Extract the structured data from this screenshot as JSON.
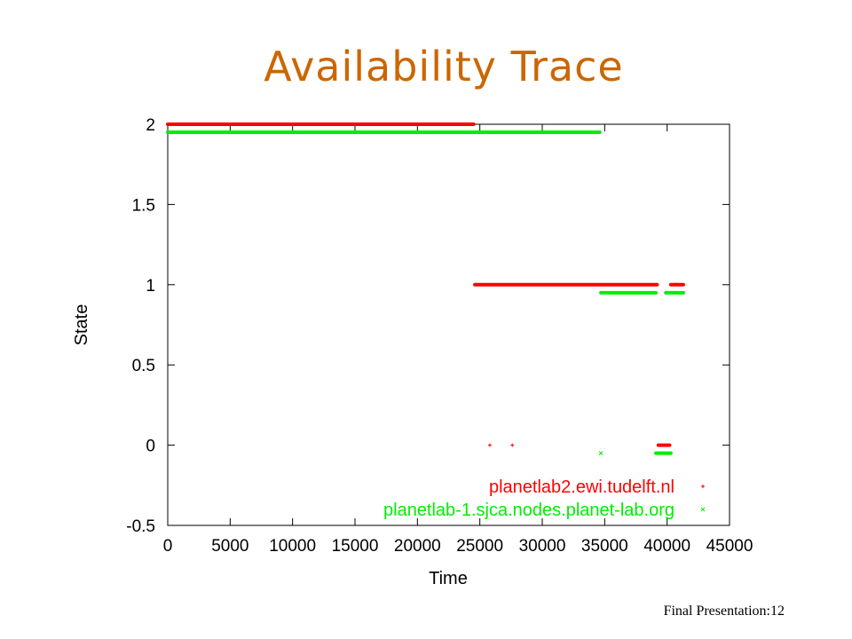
{
  "slide": {
    "title": "Availability Trace",
    "footer": "Final Presentation:12"
  },
  "chart_data": {
    "type": "scatter",
    "xlabel": "Time",
    "ylabel": "State",
    "xlim": [
      0,
      45000
    ],
    "ylim": [
      -0.5,
      2
    ],
    "xticks": [
      0,
      5000,
      10000,
      15000,
      20000,
      25000,
      30000,
      35000,
      40000,
      45000
    ],
    "xtick_labels": [
      "0",
      "5000",
      "10000",
      "15000",
      "20000",
      "25000",
      "30000",
      "35000",
      "40000",
      "45000"
    ],
    "yticks": [
      -0.5,
      0,
      0.5,
      1,
      1.5,
      2
    ],
    "ytick_labels": [
      "-0.5",
      "0",
      "0.5",
      "1",
      "1.5",
      "2"
    ],
    "grid": false,
    "legend_position": "bottom-right",
    "series": [
      {
        "name": "planetlab2.ewi.tudelft.nl",
        "color": "#ff0000",
        "marker": "+",
        "segments": [
          {
            "y": 2,
            "x_start": 0,
            "x_end": 24500
          },
          {
            "y": 1,
            "x_start": 24600,
            "x_end": 39200
          },
          {
            "y": 1,
            "x_start": 40300,
            "x_end": 41300
          },
          {
            "y": 0,
            "x_start": 39300,
            "x_end": 40200
          }
        ],
        "points": [
          {
            "x": 25800,
            "y": 0
          },
          {
            "x": 27600,
            "y": 0
          }
        ]
      },
      {
        "name": "planetlab-1.sjca.nodes.planet-lab.org",
        "color": "#00ee00",
        "marker": "x",
        "segments": [
          {
            "y": 1.95,
            "x_start": 0,
            "x_end": 34600
          },
          {
            "y": 0.95,
            "x_start": 34700,
            "x_end": 39100
          },
          {
            "y": 0.95,
            "x_start": 39900,
            "x_end": 41300
          },
          {
            "y": -0.05,
            "x_start": 39100,
            "x_end": 40300
          }
        ],
        "points": [
          {
            "x": 34700,
            "y": -0.05
          }
        ]
      }
    ]
  }
}
